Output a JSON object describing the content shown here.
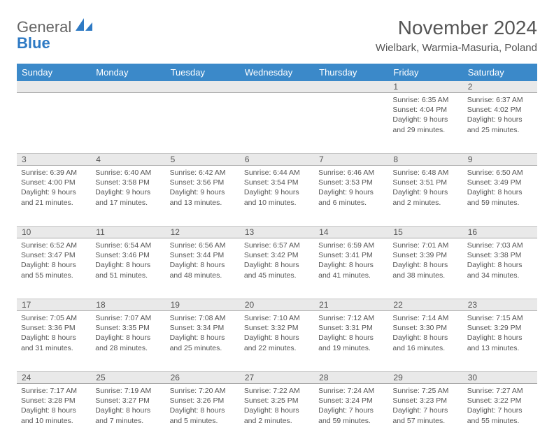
{
  "brand": {
    "part1": "General",
    "part2": "Blue",
    "logo_color": "#2e7ac4"
  },
  "title": "November 2024",
  "subtitle": "Wielbark, Warmia-Masuria, Poland",
  "colors": {
    "header_bg": "#3b89c9",
    "header_text": "#ffffff",
    "daynum_bg": "#e9e9e9",
    "text": "#555555",
    "rule": "#a8a8a8"
  },
  "days_of_week": [
    "Sunday",
    "Monday",
    "Tuesday",
    "Wednesday",
    "Thursday",
    "Friday",
    "Saturday"
  ],
  "weeks": [
    {
      "nums": [
        "",
        "",
        "",
        "",
        "",
        "1",
        "2"
      ],
      "cells": [
        null,
        null,
        null,
        null,
        null,
        {
          "sunrise": "Sunrise: 6:35 AM",
          "sunset": "Sunset: 4:04 PM",
          "day1": "Daylight: 9 hours",
          "day2": "and 29 minutes."
        },
        {
          "sunrise": "Sunrise: 6:37 AM",
          "sunset": "Sunset: 4:02 PM",
          "day1": "Daylight: 9 hours",
          "day2": "and 25 minutes."
        }
      ]
    },
    {
      "nums": [
        "3",
        "4",
        "5",
        "6",
        "7",
        "8",
        "9"
      ],
      "cells": [
        {
          "sunrise": "Sunrise: 6:39 AM",
          "sunset": "Sunset: 4:00 PM",
          "day1": "Daylight: 9 hours",
          "day2": "and 21 minutes."
        },
        {
          "sunrise": "Sunrise: 6:40 AM",
          "sunset": "Sunset: 3:58 PM",
          "day1": "Daylight: 9 hours",
          "day2": "and 17 minutes."
        },
        {
          "sunrise": "Sunrise: 6:42 AM",
          "sunset": "Sunset: 3:56 PM",
          "day1": "Daylight: 9 hours",
          "day2": "and 13 minutes."
        },
        {
          "sunrise": "Sunrise: 6:44 AM",
          "sunset": "Sunset: 3:54 PM",
          "day1": "Daylight: 9 hours",
          "day2": "and 10 minutes."
        },
        {
          "sunrise": "Sunrise: 6:46 AM",
          "sunset": "Sunset: 3:53 PM",
          "day1": "Daylight: 9 hours",
          "day2": "and 6 minutes."
        },
        {
          "sunrise": "Sunrise: 6:48 AM",
          "sunset": "Sunset: 3:51 PM",
          "day1": "Daylight: 9 hours",
          "day2": "and 2 minutes."
        },
        {
          "sunrise": "Sunrise: 6:50 AM",
          "sunset": "Sunset: 3:49 PM",
          "day1": "Daylight: 8 hours",
          "day2": "and 59 minutes."
        }
      ]
    },
    {
      "nums": [
        "10",
        "11",
        "12",
        "13",
        "14",
        "15",
        "16"
      ],
      "cells": [
        {
          "sunrise": "Sunrise: 6:52 AM",
          "sunset": "Sunset: 3:47 PM",
          "day1": "Daylight: 8 hours",
          "day2": "and 55 minutes."
        },
        {
          "sunrise": "Sunrise: 6:54 AM",
          "sunset": "Sunset: 3:46 PM",
          "day1": "Daylight: 8 hours",
          "day2": "and 51 minutes."
        },
        {
          "sunrise": "Sunrise: 6:56 AM",
          "sunset": "Sunset: 3:44 PM",
          "day1": "Daylight: 8 hours",
          "day2": "and 48 minutes."
        },
        {
          "sunrise": "Sunrise: 6:57 AM",
          "sunset": "Sunset: 3:42 PM",
          "day1": "Daylight: 8 hours",
          "day2": "and 45 minutes."
        },
        {
          "sunrise": "Sunrise: 6:59 AM",
          "sunset": "Sunset: 3:41 PM",
          "day1": "Daylight: 8 hours",
          "day2": "and 41 minutes."
        },
        {
          "sunrise": "Sunrise: 7:01 AM",
          "sunset": "Sunset: 3:39 PM",
          "day1": "Daylight: 8 hours",
          "day2": "and 38 minutes."
        },
        {
          "sunrise": "Sunrise: 7:03 AM",
          "sunset": "Sunset: 3:38 PM",
          "day1": "Daylight: 8 hours",
          "day2": "and 34 minutes."
        }
      ]
    },
    {
      "nums": [
        "17",
        "18",
        "19",
        "20",
        "21",
        "22",
        "23"
      ],
      "cells": [
        {
          "sunrise": "Sunrise: 7:05 AM",
          "sunset": "Sunset: 3:36 PM",
          "day1": "Daylight: 8 hours",
          "day2": "and 31 minutes."
        },
        {
          "sunrise": "Sunrise: 7:07 AM",
          "sunset": "Sunset: 3:35 PM",
          "day1": "Daylight: 8 hours",
          "day2": "and 28 minutes."
        },
        {
          "sunrise": "Sunrise: 7:08 AM",
          "sunset": "Sunset: 3:34 PM",
          "day1": "Daylight: 8 hours",
          "day2": "and 25 minutes."
        },
        {
          "sunrise": "Sunrise: 7:10 AM",
          "sunset": "Sunset: 3:32 PM",
          "day1": "Daylight: 8 hours",
          "day2": "and 22 minutes."
        },
        {
          "sunrise": "Sunrise: 7:12 AM",
          "sunset": "Sunset: 3:31 PM",
          "day1": "Daylight: 8 hours",
          "day2": "and 19 minutes."
        },
        {
          "sunrise": "Sunrise: 7:14 AM",
          "sunset": "Sunset: 3:30 PM",
          "day1": "Daylight: 8 hours",
          "day2": "and 16 minutes."
        },
        {
          "sunrise": "Sunrise: 7:15 AM",
          "sunset": "Sunset: 3:29 PM",
          "day1": "Daylight: 8 hours",
          "day2": "and 13 minutes."
        }
      ]
    },
    {
      "nums": [
        "24",
        "25",
        "26",
        "27",
        "28",
        "29",
        "30"
      ],
      "cells": [
        {
          "sunrise": "Sunrise: 7:17 AM",
          "sunset": "Sunset: 3:28 PM",
          "day1": "Daylight: 8 hours",
          "day2": "and 10 minutes."
        },
        {
          "sunrise": "Sunrise: 7:19 AM",
          "sunset": "Sunset: 3:27 PM",
          "day1": "Daylight: 8 hours",
          "day2": "and 7 minutes."
        },
        {
          "sunrise": "Sunrise: 7:20 AM",
          "sunset": "Sunset: 3:26 PM",
          "day1": "Daylight: 8 hours",
          "day2": "and 5 minutes."
        },
        {
          "sunrise": "Sunrise: 7:22 AM",
          "sunset": "Sunset: 3:25 PM",
          "day1": "Daylight: 8 hours",
          "day2": "and 2 minutes."
        },
        {
          "sunrise": "Sunrise: 7:24 AM",
          "sunset": "Sunset: 3:24 PM",
          "day1": "Daylight: 7 hours",
          "day2": "and 59 minutes."
        },
        {
          "sunrise": "Sunrise: 7:25 AM",
          "sunset": "Sunset: 3:23 PM",
          "day1": "Daylight: 7 hours",
          "day2": "and 57 minutes."
        },
        {
          "sunrise": "Sunrise: 7:27 AM",
          "sunset": "Sunset: 3:22 PM",
          "day1": "Daylight: 7 hours",
          "day2": "and 55 minutes."
        }
      ]
    }
  ]
}
